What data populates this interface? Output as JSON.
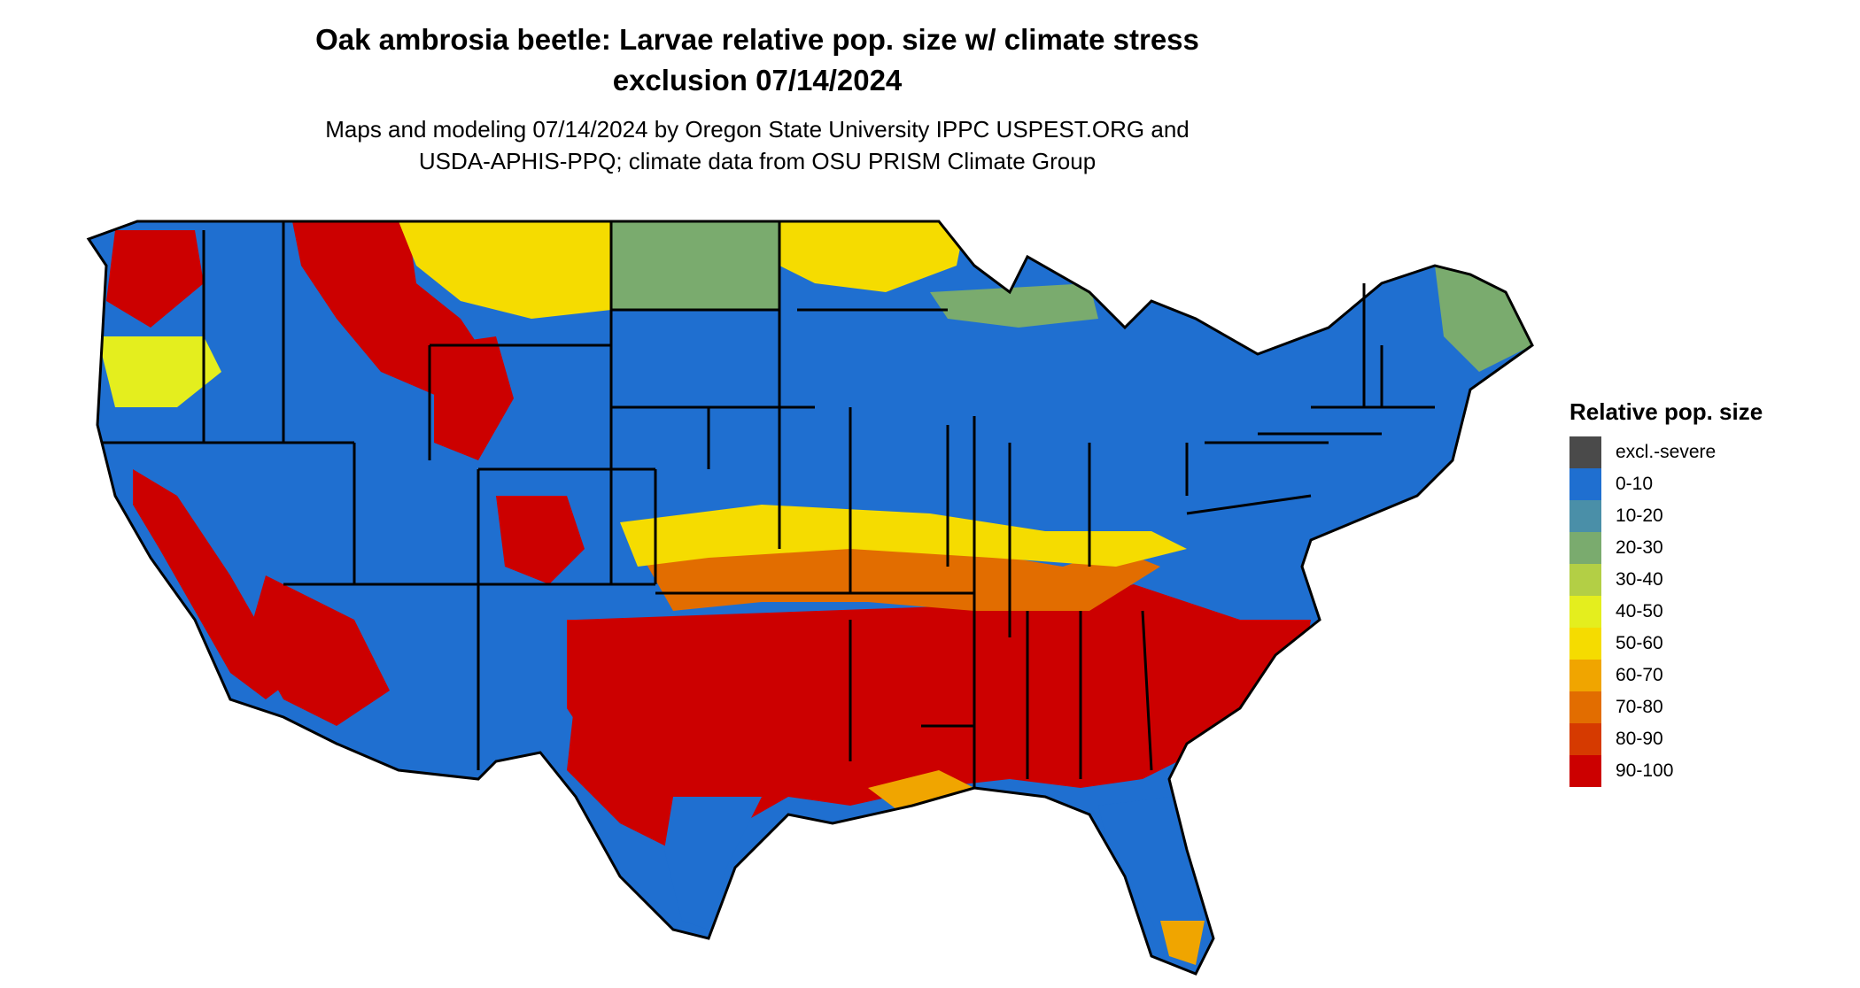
{
  "title": {
    "line1": "Oak ambrosia beetle: Larvae relative pop. size w/ climate stress",
    "line2": "exclusion 07/14/2024"
  },
  "subtitle": {
    "line1": "Maps and modeling 07/14/2024 by Oregon State University IPPC USPEST.ORG and",
    "line2": "USDA-APHIS-PPQ; climate data from OSU PRISM Climate Group"
  },
  "legend": {
    "title": "Relative pop. size",
    "items": [
      {
        "label": "excl.-severe",
        "color": "#4a4a4a"
      },
      {
        "label": "0-10",
        "color": "#1f6fd0"
      },
      {
        "label": "10-20",
        "color": "#4a8fa8"
      },
      {
        "label": "20-30",
        "color": "#7aab6e"
      },
      {
        "label": "30-40",
        "color": "#b3cf45"
      },
      {
        "label": "40-50",
        "color": "#e4ee1e"
      },
      {
        "label": "50-60",
        "color": "#f5dc00"
      },
      {
        "label": "60-70",
        "color": "#f0a500"
      },
      {
        "label": "70-80",
        "color": "#e26d00"
      },
      {
        "label": "80-90",
        "color": "#d63a00"
      },
      {
        "label": "90-100",
        "color": "#cc0000"
      }
    ]
  },
  "map": {
    "region": "contiguous-us",
    "regions_by_class": {
      "0-10": [
        "north-central-plains",
        "midwest",
        "northeast",
        "great-basin",
        "gulf-coast-texas",
        "florida-peninsula",
        "pacific-coast"
      ],
      "20-30": [
        "north-dakota",
        "maine"
      ],
      "50-60": [
        "minnesota-north",
        "montana-plains"
      ],
      "90-100": [
        "southeast",
        "oklahoma-texas",
        "california-central-valley",
        "rocky-mountains"
      ]
    }
  }
}
